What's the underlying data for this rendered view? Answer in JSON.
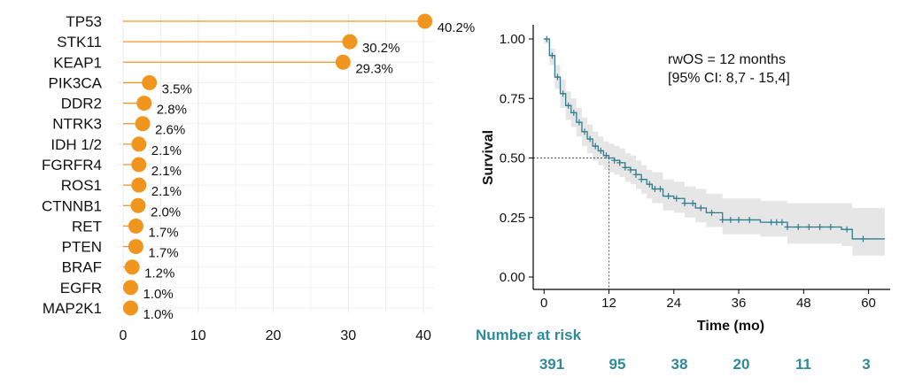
{
  "chart_data": [
    {
      "type": "lollipop",
      "categories": [
        "TP53",
        "STK11",
        "KEAP1",
        "PIK3CA",
        "DDR2",
        "NTRK3",
        "IDH 1/2",
        "FGRFR4",
        "ROS1",
        "CTNNB1",
        "RET",
        "PTEN",
        "BRAF",
        "EGFR",
        "MAP2K1"
      ],
      "values": [
        40.2,
        30.2,
        29.3,
        3.5,
        2.8,
        2.6,
        2.1,
        2.1,
        2.1,
        2.0,
        1.7,
        1.7,
        1.2,
        1.0,
        1.0
      ],
      "labels": [
        "40.2%",
        "30.2%",
        "29.3%",
        "3.5%",
        "2.8%",
        "2.6%",
        "2.1%",
        "2.1%",
        "2.1%",
        "2.0%",
        "1.7%",
        "1.7%",
        "1.2%",
        "1.0%",
        "1.0%"
      ],
      "xticks": [
        "0",
        "10",
        "20",
        "30",
        "40"
      ],
      "xlim": [
        0,
        40
      ],
      "grid": true,
      "color": "#f0961e"
    },
    {
      "type": "line",
      "subtype": "kaplan-meier",
      "xlabel": "Time (mo)",
      "ylabel": "Survival",
      "xticks": [
        "0",
        "12",
        "24",
        "36",
        "48",
        "60"
      ],
      "yticks": [
        "0.00",
        "0.25",
        "0.50",
        "0.75",
        "1.00"
      ],
      "xlim": [
        -2,
        64
      ],
      "ylim": [
        0,
        1
      ],
      "median_x": 12,
      "median_y": 0.5,
      "annotation": [
        "rwOS = 12 months",
        "[95% CI: 8,7 - 15,4]"
      ],
      "line_color": "#2f7d8f",
      "ci_color": "#e6e6e6",
      "x": [
        0,
        1,
        2,
        3,
        4,
        5,
        6,
        7,
        8,
        9,
        10,
        11,
        12,
        13,
        14,
        15,
        16,
        17,
        18,
        19,
        20,
        22,
        24,
        26,
        28,
        30,
        33,
        36,
        40,
        45,
        50,
        55,
        57,
        60,
        63
      ],
      "y": [
        1.0,
        0.93,
        0.84,
        0.77,
        0.72,
        0.69,
        0.65,
        0.61,
        0.58,
        0.55,
        0.53,
        0.51,
        0.5,
        0.49,
        0.48,
        0.46,
        0.45,
        0.43,
        0.41,
        0.39,
        0.37,
        0.34,
        0.33,
        0.31,
        0.29,
        0.27,
        0.24,
        0.24,
        0.23,
        0.21,
        0.21,
        0.2,
        0.16,
        0.16,
        0.16
      ],
      "ci_upper": [
        1.0,
        0.96,
        0.89,
        0.83,
        0.78,
        0.75,
        0.71,
        0.67,
        0.64,
        0.61,
        0.59,
        0.57,
        0.56,
        0.55,
        0.54,
        0.52,
        0.51,
        0.49,
        0.47,
        0.45,
        0.44,
        0.41,
        0.4,
        0.38,
        0.37,
        0.35,
        0.33,
        0.33,
        0.32,
        0.31,
        0.31,
        0.31,
        0.29,
        0.29,
        0.29
      ],
      "ci_lower": [
        0.98,
        0.89,
        0.79,
        0.71,
        0.66,
        0.63,
        0.59,
        0.55,
        0.52,
        0.49,
        0.47,
        0.45,
        0.44,
        0.43,
        0.42,
        0.4,
        0.39,
        0.37,
        0.35,
        0.33,
        0.31,
        0.28,
        0.27,
        0.25,
        0.23,
        0.21,
        0.18,
        0.18,
        0.17,
        0.14,
        0.14,
        0.13,
        0.09,
        0.09,
        0.09
      ],
      "censor_x": [
        0.5,
        1.5,
        2.5,
        3.5,
        4.5,
        5.5,
        6.5,
        7.5,
        8.5,
        9.5,
        10.5,
        11.5,
        13,
        14,
        15,
        16,
        17,
        18,
        19.5,
        20.5,
        21.5,
        23,
        24.5,
        26,
        27.5,
        29,
        31,
        33,
        34.5,
        36,
        38,
        42,
        43,
        44,
        45,
        47,
        49,
        51,
        53,
        56,
        59
      ],
      "risk_title": "Number at risk",
      "risk_values": [
        "391",
        "95",
        "38",
        "20",
        "11",
        "3"
      ]
    }
  ]
}
